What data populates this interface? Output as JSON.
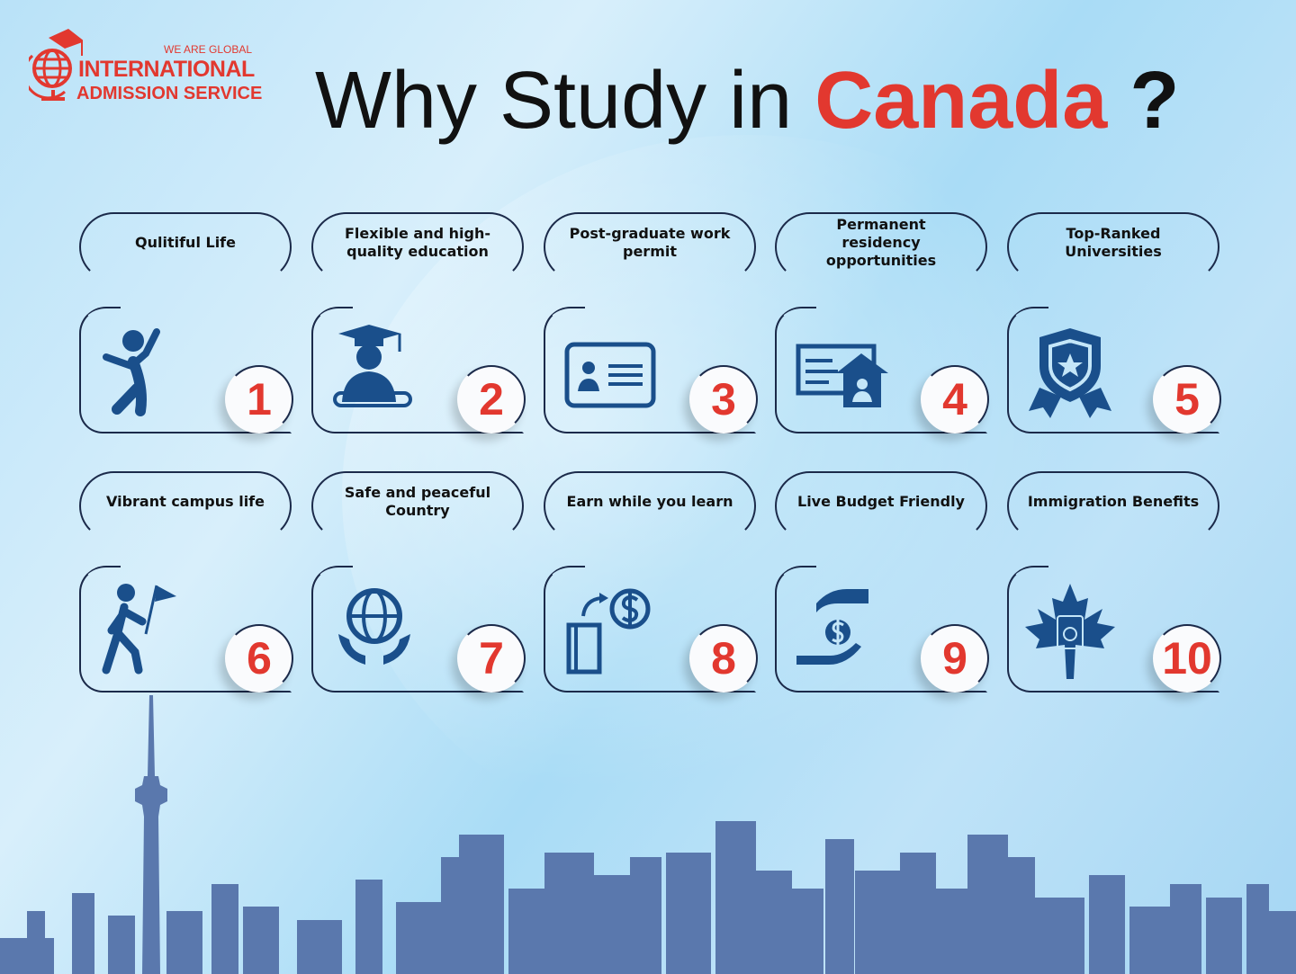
{
  "logo": {
    "tagline": "WE ARE GLOBAL",
    "line1": "INTERNATIONAL",
    "line2": "ADMISSION SERVICE"
  },
  "title": {
    "prefix": "Why Study in",
    "accent": "Canada",
    "suffix": "?"
  },
  "colors": {
    "accent": "#e2382f",
    "icon": "#1a4f8b",
    "outline": "#1b2a4a",
    "skyline": "#5a78ad"
  },
  "items": [
    {
      "label": "Qulitiful Life",
      "number": "1",
      "icon": "jumping-person-icon"
    },
    {
      "label": "Flexible and high-quality education",
      "number": "2",
      "icon": "graduate-icon"
    },
    {
      "label": "Post-graduate work permit",
      "number": "3",
      "icon": "id-card-icon"
    },
    {
      "label": "Permanent residency opportunities",
      "number": "4",
      "icon": "house-document-icon"
    },
    {
      "label": "Top-Ranked Universities",
      "number": "5",
      "icon": "badge-icon"
    },
    {
      "label": "Vibrant campus life",
      "number": "6",
      "icon": "walking-flag-icon"
    },
    {
      "label": "Safe and peaceful Country",
      "number": "7",
      "icon": "globe-hands-icon"
    },
    {
      "label": "Earn while you learn",
      "number": "8",
      "icon": "book-dollar-icon"
    },
    {
      "label": "Live Budget Friendly",
      "number": "9",
      "icon": "hands-dollar-icon"
    },
    {
      "label": "Immigration Benefits",
      "number": "10",
      "icon": "maple-passport-icon"
    }
  ]
}
